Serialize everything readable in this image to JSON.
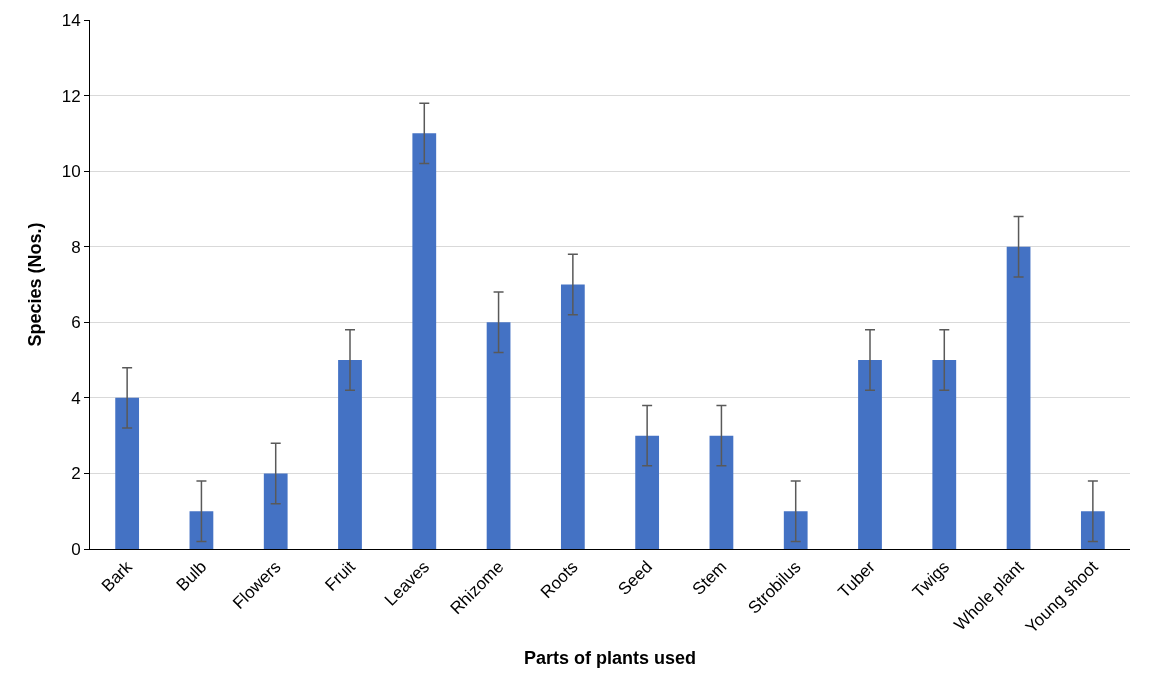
{
  "chart_data": {
    "type": "bar",
    "xlabel": "Parts of plants used",
    "ylabel": "Species (Nos.)",
    "categories": [
      "Bark",
      "Bulb",
      "Flowers",
      "Fruit",
      "Leaves",
      "Rhizome",
      "Roots",
      "Seed",
      "Stem",
      "Strobilus",
      "Tuber",
      "Twigs",
      "Whole plant",
      "Young shoot"
    ],
    "values": [
      4,
      1,
      2,
      5,
      11,
      6,
      7,
      3,
      3,
      1,
      5,
      5,
      8,
      1
    ],
    "errors": [
      0.8,
      0.8,
      0.8,
      0.8,
      0.8,
      0.8,
      0.8,
      0.8,
      0.8,
      0.8,
      0.8,
      0.8,
      0.8,
      0.8
    ],
    "color": "#4472c4",
    "ylim": [
      0,
      14
    ],
    "yticks": [
      0,
      2,
      4,
      6,
      8,
      10,
      12,
      14
    ],
    "grid": "y",
    "legend": false
  }
}
